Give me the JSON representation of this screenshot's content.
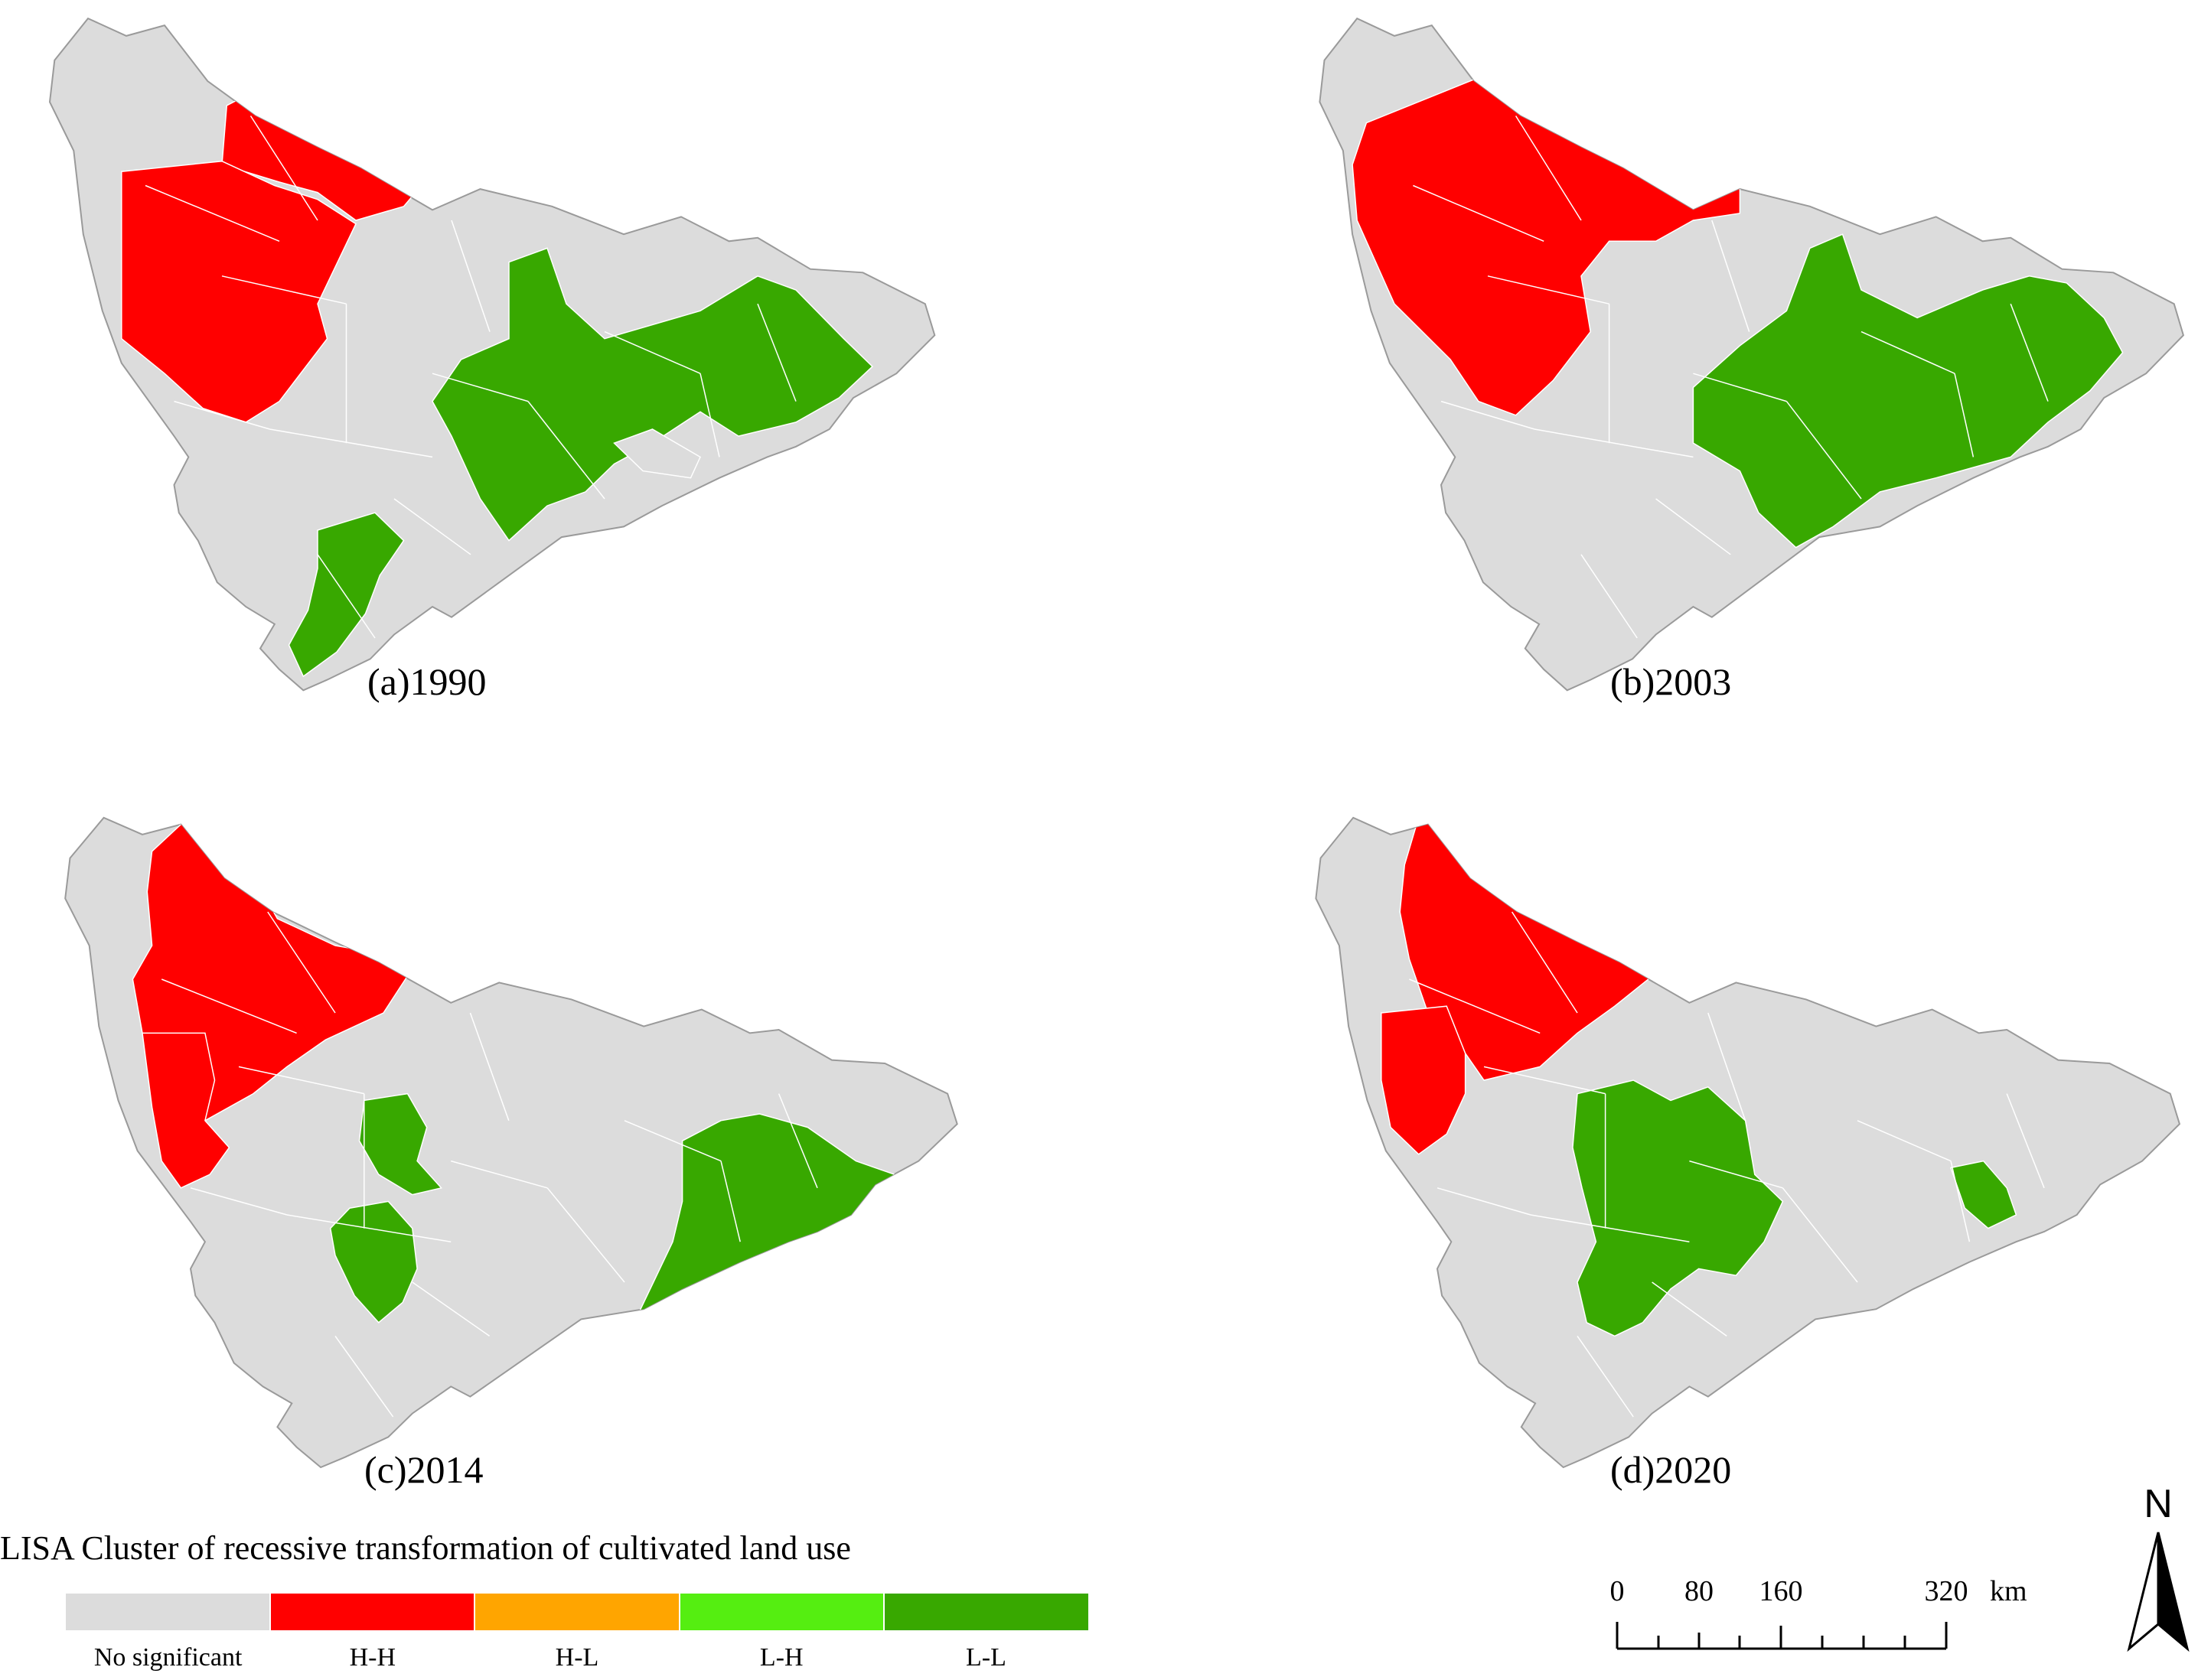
{
  "colors": {
    "none": "#dcdcdc",
    "hh": "#ff0000",
    "hl": "#ffa500",
    "lh": "#55ee11",
    "ll": "#38a800",
    "boundary": "#ffffff",
    "outline": "#9a9a9a"
  },
  "panels": [
    {
      "label": "(a)1990"
    },
    {
      "label": "(b)2003"
    },
    {
      "label": "(c)2014"
    },
    {
      "label": "(d)2020"
    }
  ],
  "legend": {
    "title": "LISA Cluster of recessive transformation of cultivated land use",
    "items": [
      {
        "label": "No significant",
        "color": "#dcdcdc"
      },
      {
        "label": "H-H",
        "color": "#ff0000"
      },
      {
        "label": "H-L",
        "color": "#ffa500"
      },
      {
        "label": "L-H",
        "color": "#55ee11"
      },
      {
        "label": "L-L",
        "color": "#38a800"
      }
    ]
  },
  "scale_bar": {
    "ticks": [
      "0",
      "80",
      "160",
      "320"
    ],
    "unit": "km"
  },
  "north_arrow": {
    "label": "N"
  }
}
